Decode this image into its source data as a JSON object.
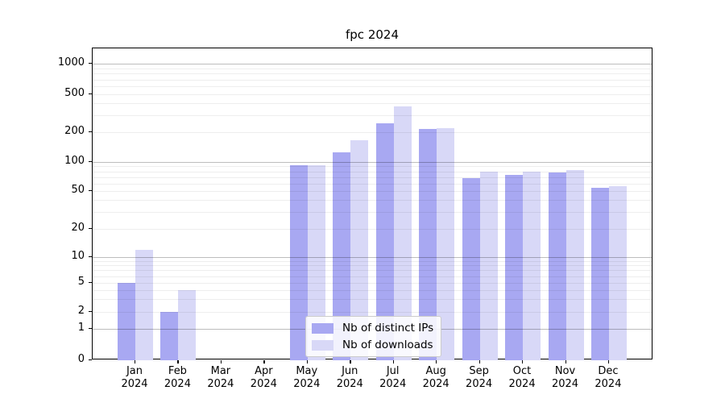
{
  "title": "fpc 2024",
  "chart_data": {
    "type": "bar",
    "title": "fpc 2024",
    "categories": [
      "Jan",
      "Feb",
      "Mar",
      "Apr",
      "May",
      "Jun",
      "Jul",
      "Aug",
      "Sep",
      "Oct",
      "Nov",
      "Dec"
    ],
    "category_year_label": "2024",
    "series": [
      {
        "name": "Nb of distinct IPs",
        "color": "#a8a8f2",
        "values": [
          5,
          2,
          0,
          0,
          93,
          125,
          250,
          215,
          68,
          74,
          78,
          54
        ]
      },
      {
        "name": "Nb of downloads",
        "color": "#d8d8f7",
        "values": [
          12,
          4,
          0,
          0,
          92,
          167,
          375,
          220,
          79,
          80,
          82,
          56
        ]
      }
    ],
    "xlabel": "",
    "ylabel": "",
    "y_ticks": [
      0,
      1,
      2,
      5,
      10,
      20,
      50,
      100,
      200,
      500,
      1000
    ],
    "y_scale": "log",
    "ylim": [
      0,
      1500
    ],
    "grid": "on",
    "legend_position": "bottom-center"
  }
}
